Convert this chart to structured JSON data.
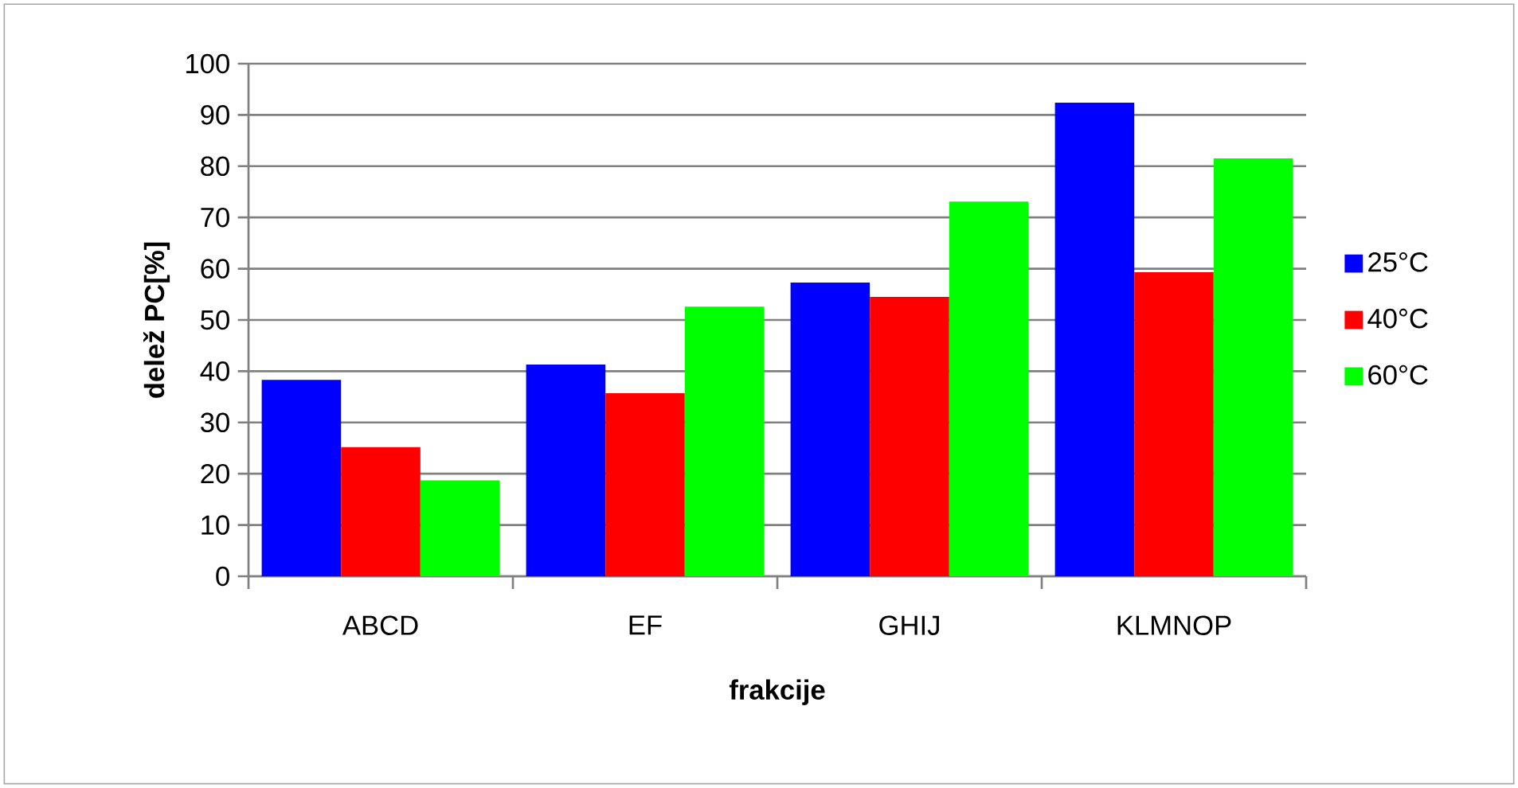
{
  "chart_data": {
    "type": "bar",
    "xlabel": "frakcije",
    "ylabel": "delež PC[%]",
    "categories": [
      "ABCD",
      "EF",
      "GHIJ",
      "KLMNOP"
    ],
    "series": [
      {
        "name": "25°C",
        "color": "#0000ff",
        "values": [
          38.3,
          41.3,
          57.3,
          92.4
        ]
      },
      {
        "name": "40°C",
        "color": "#ff0000",
        "values": [
          25.2,
          35.7,
          54.5,
          59.3
        ]
      },
      {
        "name": "60°C",
        "color": "#00ff00",
        "values": [
          18.7,
          52.6,
          73.1,
          81.5
        ]
      }
    ],
    "ylim": [
      0,
      100
    ],
    "yticks": [
      0,
      10,
      20,
      30,
      40,
      50,
      60,
      70,
      80,
      90,
      100
    ],
    "grid": "y",
    "legend": "right"
  }
}
